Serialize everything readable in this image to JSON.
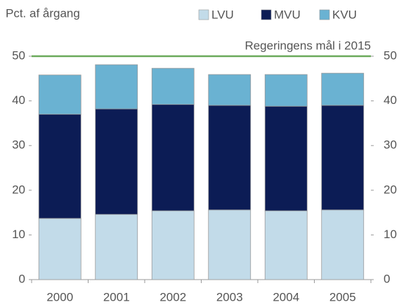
{
  "chart_data": {
    "type": "stacked_bar",
    "y_axis_label": "Pct. af årgang",
    "categories": [
      "2000",
      "2001",
      "2002",
      "2003",
      "2004",
      "2005"
    ],
    "series": [
      {
        "name": "LVU",
        "color": "#c2dbe9",
        "values": [
          13.7,
          14.6,
          15.4,
          15.6,
          15.4,
          15.6
        ]
      },
      {
        "name": "MVU",
        "color": "#0c1c55",
        "values": [
          23.3,
          23.6,
          23.8,
          23.4,
          23.4,
          23.4
        ]
      },
      {
        "name": "KVU",
        "color": "#6ab2d2",
        "values": [
          8.8,
          9.9,
          8.1,
          6.9,
          7.1,
          7.2
        ]
      }
    ],
    "reference_line": {
      "value": 50,
      "label": "Regeringens mål i 2015",
      "color": "#6aaa5a"
    },
    "ylim": [
      0,
      50
    ],
    "yticks": [
      0,
      10,
      20,
      30,
      40,
      50
    ],
    "y2lim": [
      0,
      50
    ],
    "y2ticks": [
      0,
      10,
      20,
      30,
      40,
      50
    ],
    "grid": false
  }
}
